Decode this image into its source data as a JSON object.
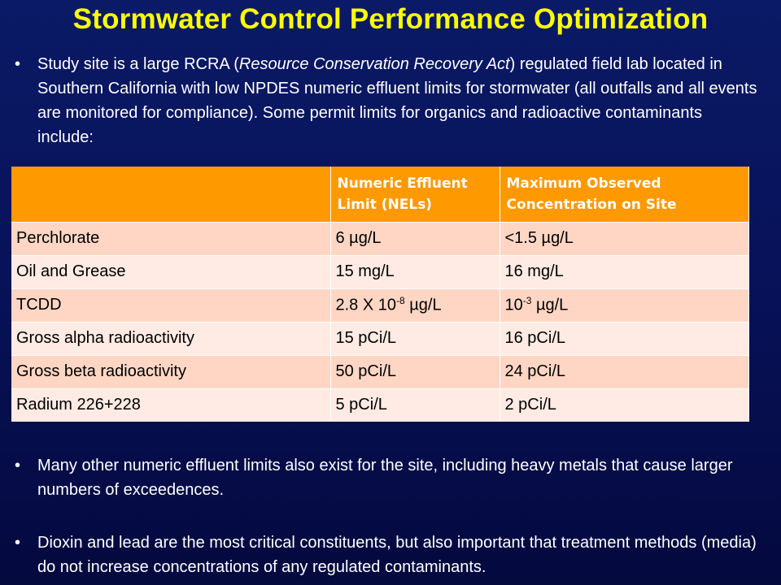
{
  "title": "Stormwater Control Performance Optimization",
  "bullet_char": "•",
  "intro": {
    "part1": "Study site is a large RCRA (",
    "italic": "Resource Conservation Recovery Act",
    "part2": ") regulated field lab located in Southern California with low NPDES numeric effluent limits for stormwater (all outfalls and all events are monitored for compliance). Some permit limits for organics and radioactive contaminants include:"
  },
  "table": {
    "headers": [
      "",
      "Numeric Effluent Limit (NELs)",
      "Maximum Observed Concentration on Site"
    ],
    "rows": [
      {
        "name": "Perchlorate",
        "nel": "6 µg/L",
        "max": "<1.5 µg/L"
      },
      {
        "name": "Oil and Grease",
        "nel": "15 mg/L",
        "max": "16 mg/L"
      },
      {
        "name": "TCDD",
        "nel_base": "2.8 X 10",
        "nel_exp": "-8",
        "nel_unit": " µg/L",
        "max_base": "10",
        "max_exp": "-3",
        "max_unit": " µg/L"
      },
      {
        "name": "Gross alpha radioactivity",
        "nel": "15 pCi/L",
        "max": "16 pCi/L"
      },
      {
        "name": "Gross beta radioactivity",
        "nel": "50 pCi/L",
        "max": "24 pCi/L"
      },
      {
        "name": "Radium 226+228",
        "nel": "5 pCi/L",
        "max": "2 pCi/L"
      }
    ]
  },
  "bullets": [
    "Many other numeric effluent limits also exist for the site, including heavy metals that cause larger numbers of exceedences.",
    "Dioxin and lead are the most critical constituents, but also important that treatment methods (media) do not increase concentrations of any regulated contaminants."
  ],
  "colors": {
    "title": "#ffff00",
    "header_bg": "#ff9900",
    "row_odd": "#ffd6c4",
    "row_even": "#ffebe3",
    "background": "#07125a"
  }
}
